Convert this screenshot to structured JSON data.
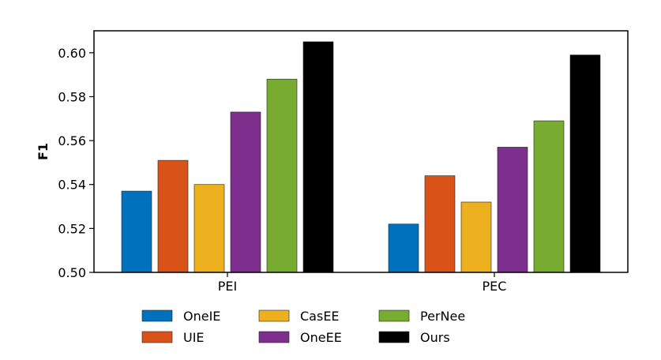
{
  "chart_data": {
    "type": "bar",
    "title": "",
    "xlabel": "",
    "ylabel": "F1",
    "ylim": [
      0.5,
      0.61
    ],
    "yticks": [
      "0.50",
      "0.52",
      "0.54",
      "0.56",
      "0.58",
      "0.60"
    ],
    "categories": [
      "PEI",
      "PEC"
    ],
    "series": [
      {
        "name": "OneIE",
        "color": "#0072bd",
        "values": [
          0.537,
          0.522
        ]
      },
      {
        "name": "UIE",
        "color": "#d95319",
        "values": [
          0.551,
          0.544
        ]
      },
      {
        "name": "CasEE",
        "color": "#edb120",
        "values": [
          0.54,
          0.532
        ]
      },
      {
        "name": "OneEE",
        "color": "#7e2f8e",
        "values": [
          0.573,
          0.557
        ]
      },
      {
        "name": "PerNee",
        "color": "#77ac30",
        "values": [
          0.588,
          0.569
        ]
      },
      {
        "name": "Ours",
        "color": "#000000",
        "values": [
          0.605,
          0.599
        ]
      }
    ],
    "legend_position": "bottom",
    "grid": false
  }
}
